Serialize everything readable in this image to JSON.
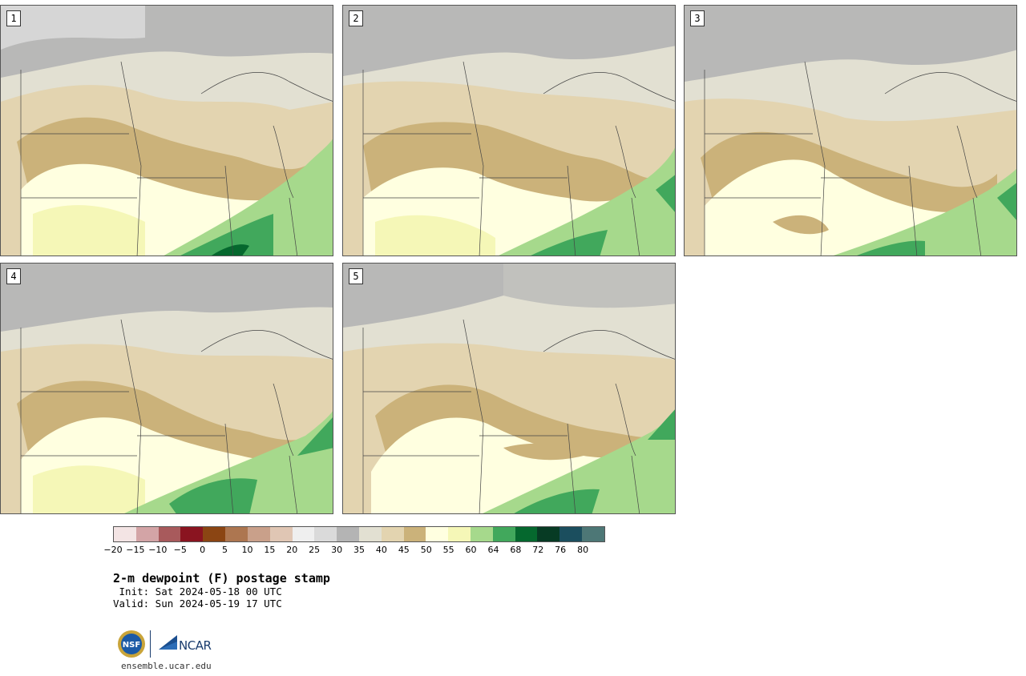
{
  "product": {
    "title": "2-m dewpoint (F) postage stamp",
    "init_line": " Init: Sat 2024-05-18 00 UTC",
    "valid_line": "Valid: Sun 2024-05-19 17 UTC",
    "website": "ensemble.ucar.edu"
  },
  "members": [
    {
      "label": "1"
    },
    {
      "label": "2"
    },
    {
      "label": "3"
    },
    {
      "label": "4"
    },
    {
      "label": "5"
    }
  ],
  "colorbar": {
    "colors": [
      "#f3e4e4",
      "#d3a4a6",
      "#a85a5c",
      "#8a1420",
      "#8b4513",
      "#ad7650",
      "#c9a08a",
      "#e0c6b4",
      "#efefef",
      "#dadada",
      "#b4b4b4",
      "#e2e0d2",
      "#e3d4b0",
      "#cbb27a",
      "#ffffe0",
      "#f5f7b7",
      "#a6d98c",
      "#41a85c",
      "#05682e",
      "#073b24",
      "#1b4e5e",
      "#4d7776"
    ],
    "tick_labels": [
      "−20",
      "−15",
      "−10",
      "−5",
      "0",
      "5",
      "10",
      "15",
      "20",
      "25",
      "30",
      "35",
      "40",
      "45",
      "50",
      "55",
      "60",
      "64",
      "68",
      "72",
      "76",
      "80"
    ]
  },
  "logos": {
    "nsf": "NSF",
    "ncar": "NCAR"
  }
}
